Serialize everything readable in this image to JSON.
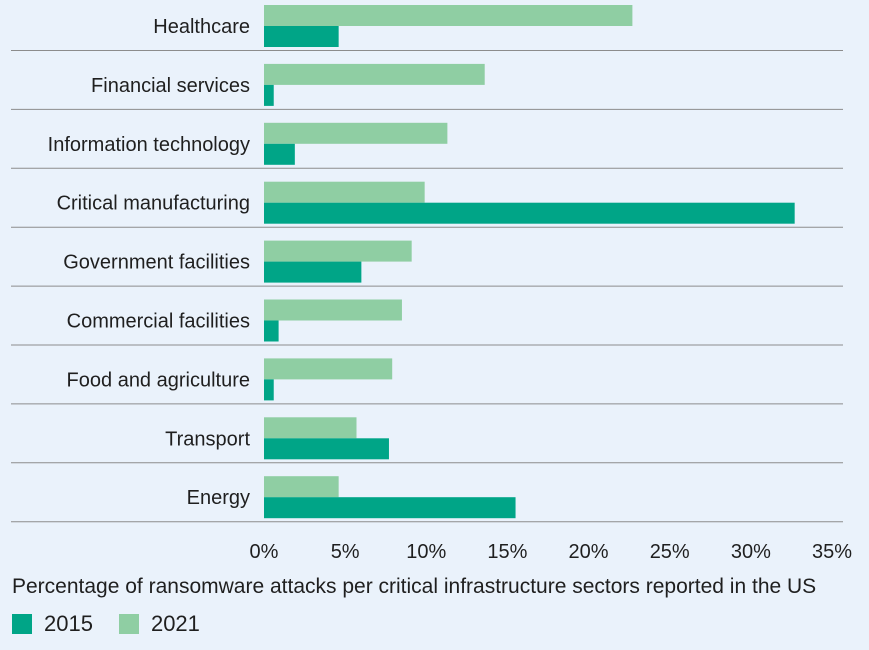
{
  "chart_data": {
    "type": "bar",
    "orientation": "horizontal",
    "categories": [
      "Healthcare",
      "Financial services",
      "Information technology",
      "Critical manufacturing",
      "Government facilities",
      "Commercial facilities",
      "Food and agriculture",
      "Transport",
      "Energy"
    ],
    "series": [
      {
        "name": "2021",
        "color": "#8fcea3",
        "values": [
          22.7,
          13.6,
          11.3,
          9.9,
          9.1,
          8.5,
          7.9,
          5.7,
          4.6
        ]
      },
      {
        "name": "2015",
        "color": "#00a587",
        "values": [
          4.6,
          0.6,
          1.9,
          32.7,
          6.0,
          0.9,
          0.6,
          7.7,
          15.5
        ]
      }
    ],
    "xlim": [
      0,
      35
    ],
    "xticks": [
      "0%",
      "5%",
      "10%",
      "15%",
      "20%",
      "25%",
      "30%",
      "35%"
    ],
    "xlabel": "Percentage of ransomware attacks per critical infrastructure sectors reported in the US",
    "legend": [
      {
        "label": "2015",
        "color": "#00a587"
      },
      {
        "label": "2021",
        "color": "#8fcea3"
      }
    ],
    "legend_position": "bottom-left",
    "grid": "horizontal separators"
  }
}
